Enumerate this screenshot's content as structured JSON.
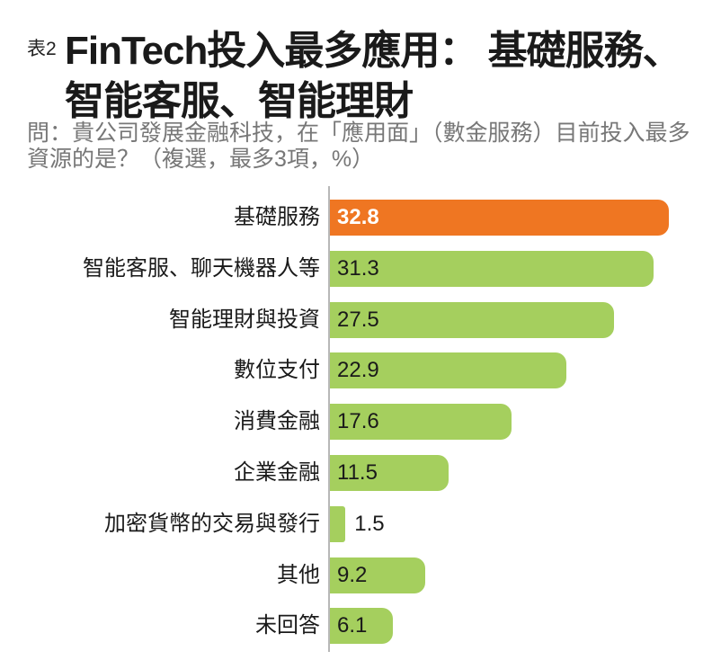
{
  "header": {
    "table_no": "表2",
    "title_line1": "FinTech投入最多應用： 基礎服務、",
    "title_line2": "智能客服、智能理財",
    "subtitle": "問：貴公司發展金融科技，在「應用面」（數金服務）目前投入最多資源的是？（複選，最多3項，%）"
  },
  "colors": {
    "highlight": "#ef7622",
    "bar": "#a5cf5e",
    "axis": "#b8b8b8",
    "subtitle": "#777777"
  },
  "chart_data": {
    "type": "bar",
    "orientation": "horizontal",
    "title": "FinTech投入最多應用：基礎服務、智能客服、智能理財",
    "subtitle": "問：貴公司發展金融科技，在「應用面」（數金服務）目前投入最多資源的是？（複選，最多3項，%）",
    "xlabel": "",
    "ylabel": "",
    "unit": "%",
    "grid": false,
    "legend": null,
    "categories": [
      "基礎服務",
      "智能客服、聊天機器人等",
      "智能理財與投資",
      "數位支付",
      "消費金融",
      "企業金融",
      "加密貨幣的交易與發行",
      "其他",
      "未回答"
    ],
    "values": [
      32.8,
      31.3,
      27.5,
      22.9,
      17.6,
      11.5,
      1.5,
      9.2,
      6.1
    ],
    "labels": [
      "32.8",
      "31.3",
      "27.5",
      "22.9",
      "17.6",
      "11.5",
      "1.5",
      "9.2",
      "6.1"
    ],
    "highlighted_index": 0
  }
}
